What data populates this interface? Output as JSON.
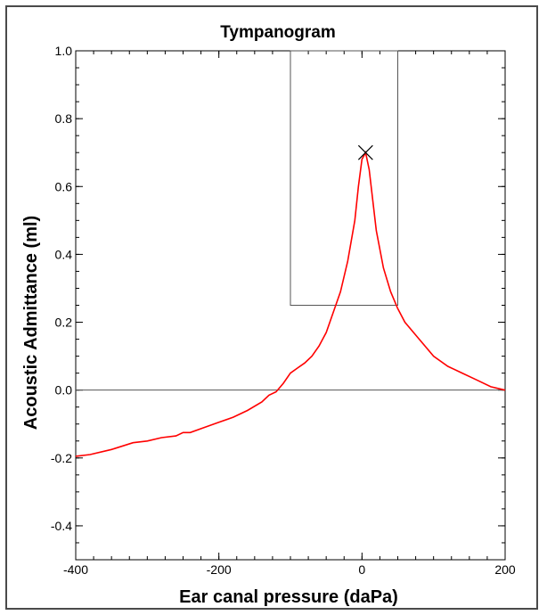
{
  "chart_data": {
    "type": "line",
    "title": "Tympanogram",
    "xlabel": "Ear canal pressure (daPa)",
    "ylabel": "Acoustic  Admittance (ml)",
    "xlim": [
      -400,
      200
    ],
    "ylim": [
      -0.5,
      1.0
    ],
    "x_ticks": [
      {
        "value": -400,
        "label": "-400"
      },
      {
        "value": -200,
        "label": "-200"
      },
      {
        "value": 0,
        "label": "0"
      },
      {
        "value": 200,
        "label": "200"
      }
    ],
    "y_ticks": [
      {
        "value": 1.0,
        "label": "1.0"
      },
      {
        "value": 0.8,
        "label": "0.8"
      },
      {
        "value": 0.6,
        "label": "0.6"
      },
      {
        "value": 0.4,
        "label": "0.4"
      },
      {
        "value": 0.2,
        "label": "0.2"
      },
      {
        "value": 0.0,
        "label": "0.0"
      },
      {
        "value": -0.2,
        "label": "-0.2"
      },
      {
        "value": -0.4,
        "label": "-0.4"
      }
    ],
    "baseline_y": 0.0,
    "normal_region": {
      "x": [
        -100,
        50
      ],
      "y": [
        0.25,
        1.0
      ]
    },
    "peak": {
      "x": 5,
      "y": 0.7,
      "marker": "x"
    },
    "series": [
      {
        "color": "#ff0000",
        "x": [
          -400,
          -380,
          -350,
          -320,
          -300,
          -280,
          -260,
          -250,
          -240,
          -220,
          -200,
          -180,
          -160,
          -140,
          -130,
          -120,
          -110,
          -100,
          -90,
          -80,
          -70,
          -60,
          -50,
          -40,
          -30,
          -20,
          -10,
          -5,
          0,
          5,
          10,
          15,
          20,
          30,
          40,
          50,
          60,
          80,
          100,
          120,
          140,
          160,
          180,
          190,
          200
        ],
        "y": [
          -0.195,
          -0.19,
          -0.175,
          -0.155,
          -0.15,
          -0.14,
          -0.135,
          -0.125,
          -0.125,
          -0.11,
          -0.095,
          -0.08,
          -0.06,
          -0.035,
          -0.015,
          -0.005,
          0.02,
          0.05,
          0.065,
          0.08,
          0.1,
          0.13,
          0.17,
          0.23,
          0.29,
          0.38,
          0.5,
          0.6,
          0.68,
          0.7,
          0.65,
          0.56,
          0.47,
          0.36,
          0.29,
          0.24,
          0.2,
          0.15,
          0.1,
          0.07,
          0.05,
          0.03,
          0.01,
          0.005,
          0.0
        ]
      }
    ],
    "grid": false
  }
}
